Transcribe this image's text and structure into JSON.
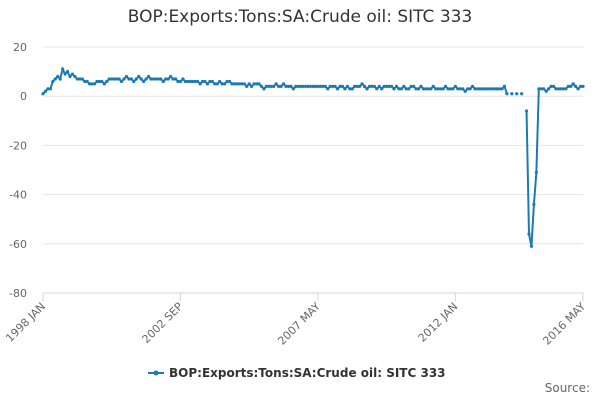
{
  "chart_data": {
    "type": "line",
    "title": "BOP:Exports:Tons:SA:Crude oil: SITC 333",
    "categories": [
      "1998 JAN",
      null,
      null,
      null,
      null,
      null,
      null,
      null,
      null,
      null,
      null,
      null,
      null,
      null,
      null,
      null,
      null,
      null,
      null,
      null,
      null,
      null,
      null,
      null,
      null,
      null,
      null,
      null,
      null,
      null,
      null,
      null,
      null,
      null,
      null,
      null,
      null,
      null,
      null,
      null,
      null,
      null,
      null,
      null,
      null,
      null,
      null,
      null,
      null,
      null,
      null,
      null,
      null,
      null,
      null,
      null,
      "2002 SEP",
      null,
      null,
      null,
      null,
      null,
      null,
      null,
      null,
      null,
      null,
      null,
      null,
      null,
      null,
      null,
      null,
      null,
      null,
      null,
      null,
      null,
      null,
      null,
      null,
      null,
      null,
      null,
      null,
      null,
      null,
      null,
      null,
      null,
      null,
      null,
      null,
      null,
      null,
      null,
      null,
      null,
      null,
      null,
      null,
      null,
      null,
      null,
      null,
      null,
      null,
      null,
      null,
      null,
      null,
      null,
      "2007 MAY",
      null,
      null,
      null,
      null,
      null,
      null,
      null,
      null,
      null,
      null,
      null,
      null,
      null,
      null,
      null,
      null,
      null,
      null,
      null,
      null,
      null,
      null,
      null,
      null,
      null,
      null,
      null,
      null,
      null,
      null,
      null,
      null,
      null,
      null,
      null,
      null,
      null,
      null,
      null,
      null,
      null,
      null,
      null,
      null,
      null,
      null,
      null,
      null,
      null,
      null,
      null,
      null,
      null,
      null,
      null,
      "2012 JAN",
      null,
      null,
      null,
      null,
      null,
      null,
      null,
      null,
      null,
      null,
      null,
      null,
      null,
      null,
      null,
      null,
      null,
      null,
      null,
      null,
      null,
      null,
      null,
      null,
      null,
      null,
      null,
      null,
      null,
      null,
      null,
      null,
      null,
      null,
      null,
      null,
      null,
      null,
      null,
      null,
      null,
      null,
      null,
      null,
      null,
      null,
      null,
      null,
      null,
      null,
      null,
      "2016 MAY"
    ],
    "series": [
      {
        "name": "BOP:Exports:Tons:SA:Crude oil: SITC 333",
        "color": "#1b7ab4",
        "values": [
          1,
          2,
          3,
          3,
          6,
          7,
          8,
          7,
          11,
          9,
          10,
          8,
          9,
          8,
          7,
          7,
          7,
          6,
          6,
          5,
          5,
          5,
          6,
          6,
          6,
          5,
          6,
          7,
          7,
          7,
          7,
          7,
          6,
          7,
          8,
          7,
          7,
          6,
          7,
          8,
          7,
          6,
          7,
          8,
          7,
          7,
          7,
          7,
          7,
          6,
          7,
          7,
          8,
          7,
          7,
          6,
          6,
          7,
          6,
          6,
          6,
          6,
          6,
          6,
          5,
          6,
          6,
          5,
          6,
          6,
          5,
          5,
          6,
          5,
          5,
          6,
          6,
          5,
          5,
          5,
          5,
          5,
          5,
          4,
          5,
          4,
          5,
          5,
          5,
          4,
          3,
          4,
          4,
          4,
          4,
          5,
          4,
          4,
          5,
          4,
          4,
          4,
          3,
          4,
          4,
          4,
          4,
          4,
          4,
          4,
          4,
          4,
          4,
          4,
          4,
          4,
          3,
          4,
          4,
          4,
          3,
          4,
          4,
          3,
          4,
          3,
          3,
          4,
          4,
          4,
          5,
          4,
          3,
          4,
          4,
          4,
          3,
          4,
          3,
          4,
          4,
          4,
          4,
          3,
          4,
          3,
          3,
          4,
          3,
          3,
          4,
          4,
          3,
          3,
          4,
          3,
          3,
          3,
          3,
          4,
          3,
          3,
          3,
          3,
          4,
          3,
          3,
          3,
          4,
          3,
          3,
          3,
          2,
          3,
          3,
          4,
          3,
          3,
          3,
          3,
          3,
          3,
          3,
          3,
          3,
          3,
          3,
          3,
          4,
          1,
          null,
          1,
          null,
          1,
          null,
          1,
          null,
          -6,
          -56,
          -61,
          -44,
          -31,
          3,
          3,
          3,
          2,
          3,
          4,
          4,
          3,
          3,
          3,
          3,
          3,
          4,
          4,
          5,
          4,
          3,
          4,
          4
        ]
      }
    ],
    "ylim": [
      -80,
      20
    ],
    "yticks": [
      -80,
      -60,
      -40,
      -20,
      0,
      20
    ],
    "grid": true,
    "legend": "bottom",
    "source": "Source:"
  }
}
